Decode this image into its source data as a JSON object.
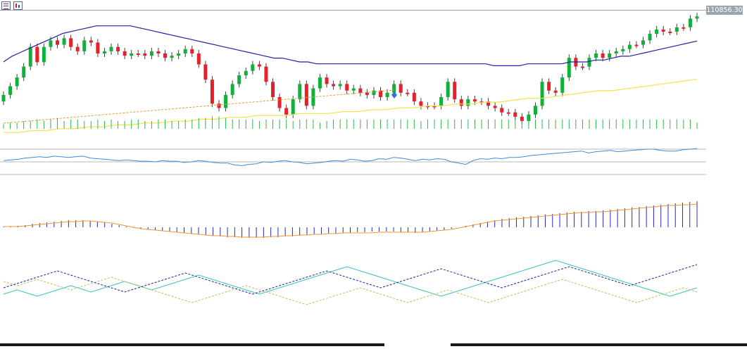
{
  "toolbar": {
    "icons": [
      "list-icon",
      "chart-icon"
    ]
  },
  "price_label": "110856.30",
  "colors": {
    "bull": "#10b03a",
    "bear": "#e8202a",
    "wick": "#404040",
    "ma_slow": "#2020a0",
    "ma_fast": "#f2e34a",
    "trend": "#e0a030",
    "volume": "#32b64a",
    "rsi": "#3b8ddb",
    "level": "#b8b8b8",
    "macd_hist": "#2828c8",
    "macd_signal": "#f0962a",
    "stoch_a": "#40bfc0",
    "stoch_b": "#b8c45a",
    "stoch_c": "#2020a0"
  },
  "chart_data": [
    {
      "type": "candlestick",
      "title": "",
      "last_price": 110856.3,
      "closes": [
        39,
        35,
        31,
        26,
        17,
        24,
        17,
        14,
        16,
        13,
        17,
        19,
        14,
        15,
        20,
        19,
        17,
        19,
        21,
        20,
        20,
        21,
        19,
        20,
        22,
        21,
        20,
        18,
        20,
        25,
        32,
        43,
        45,
        39,
        34,
        30,
        28,
        25,
        26,
        33,
        40,
        45,
        48,
        41,
        34,
        44,
        36,
        31,
        34,
        35,
        34,
        37,
        36,
        38,
        39,
        37,
        40,
        38,
        34,
        38,
        38,
        42,
        44,
        44,
        44,
        40,
        33,
        41,
        44,
        41,
        42,
        42,
        44,
        45,
        47,
        47,
        49,
        51,
        48,
        44,
        33,
        37,
        38,
        31,
        22,
        26,
        26,
        22,
        20,
        22,
        20,
        19,
        18,
        16,
        16,
        14,
        11,
        9,
        10,
        10,
        8,
        8,
        4,
        3
      ],
      "opens": [
        42,
        39,
        35,
        31,
        26,
        17,
        24,
        17,
        14,
        16,
        13,
        17,
        19,
        14,
        15,
        20,
        19,
        17,
        19,
        21,
        20,
        20,
        21,
        19,
        20,
        22,
        21,
        20,
        18,
        20,
        25,
        32,
        43,
        45,
        39,
        34,
        30,
        28,
        25,
        26,
        33,
        40,
        45,
        48,
        41,
        34,
        44,
        36,
        31,
        34,
        35,
        34,
        37,
        36,
        38,
        39,
        37,
        40,
        38,
        34,
        38,
        38,
        42,
        44,
        44,
        44,
        40,
        33,
        41,
        44,
        41,
        42,
        42,
        44,
        45,
        47,
        47,
        49,
        51,
        48,
        44,
        33,
        37,
        38,
        31,
        22,
        26,
        26,
        22,
        20,
        22,
        20,
        19,
        18,
        16,
        16,
        14,
        11,
        9,
        10,
        10,
        8,
        8,
        4
      ],
      "sma_slow": [
        40,
        37,
        35,
        33,
        31,
        29,
        27,
        25,
        24,
        23,
        22,
        21,
        21,
        21,
        21,
        21,
        22,
        23,
        24,
        25,
        26,
        27,
        28,
        29,
        30,
        31,
        32,
        33,
        34,
        35,
        36,
        37,
        38,
        38,
        39,
        40,
        40,
        41,
        41,
        41,
        41,
        41,
        41,
        41,
        41,
        41,
        41,
        41,
        41,
        41,
        41,
        41,
        41,
        41,
        41,
        41,
        41,
        41,
        42,
        42,
        42,
        42,
        41,
        41,
        41,
        41,
        41,
        40,
        40,
        40,
        39,
        39,
        38,
        37,
        37,
        36,
        35,
        34,
        33,
        32,
        31,
        30,
        29
      ],
      "sma_fast": [
        59,
        59,
        58,
        58,
        57,
        57,
        56,
        56,
        55,
        55,
        54,
        54,
        53,
        53,
        52,
        52,
        51,
        51,
        50,
        50,
        50,
        49,
        49,
        49,
        48,
        48,
        47,
        47,
        46,
        46,
        45,
        45,
        44,
        44,
        43,
        43,
        42,
        41,
        41,
        40,
        39,
        38,
        37,
        37,
        36,
        35,
        34,
        33,
        32,
        31
      ],
      "volume": [
        3,
        4,
        4,
        5,
        5,
        6,
        5,
        6,
        7,
        5,
        6,
        6,
        5,
        5,
        6,
        5,
        6,
        5,
        5,
        6,
        6,
        5,
        5,
        6,
        6,
        5,
        5,
        6,
        6,
        7,
        7,
        8,
        8,
        7,
        6,
        6,
        6,
        6,
        5,
        6,
        6,
        6,
        6,
        5,
        6,
        6,
        6,
        4,
        5,
        6,
        6,
        6,
        6,
        6,
        6,
        6,
        6,
        6,
        6,
        6,
        6,
        6,
        5,
        6,
        6,
        6,
        6,
        6,
        6,
        6,
        6,
        6,
        6,
        6,
        6,
        6,
        6,
        6,
        6,
        6,
        6,
        6,
        6,
        6,
        6,
        6,
        6,
        6,
        6,
        6,
        6,
        6,
        6,
        6,
        6,
        6,
        6,
        6,
        6,
        6,
        6,
        6,
        6,
        4
      ]
    },
    {
      "type": "line",
      "title": "",
      "levels": [
        70,
        50,
        30
      ],
      "values": [
        52,
        53,
        54,
        56,
        57,
        58,
        57,
        59,
        58,
        57,
        58,
        59,
        56,
        55,
        54,
        53,
        52,
        53,
        52,
        51,
        51,
        50,
        52,
        51,
        51,
        49,
        50,
        52,
        51,
        49,
        48,
        48,
        45,
        44,
        46,
        47,
        50,
        49,
        51,
        52,
        50,
        49,
        47,
        48,
        49,
        51,
        52,
        51,
        54,
        53,
        51,
        52,
        55,
        54,
        57,
        56,
        54,
        52,
        54,
        53,
        55,
        54,
        50,
        48,
        46,
        52,
        55,
        54,
        56,
        55,
        57,
        57,
        58,
        60,
        61,
        62,
        63,
        64,
        65,
        66,
        67,
        64,
        66,
        67,
        68,
        66,
        67,
        68,
        69,
        70,
        70,
        68,
        67,
        67,
        69,
        70,
        71
      ]
    },
    {
      "type": "bar",
      "title": "",
      "hist": [
        1,
        1,
        2,
        3,
        5,
        6,
        7,
        8,
        9,
        10,
        10,
        10,
        9,
        8,
        7,
        5,
        3,
        1,
        -1,
        -2,
        -3,
        -4,
        -5,
        -6,
        -7,
        -8,
        -9,
        -10,
        -11,
        -12,
        -13,
        -14,
        -14,
        -15,
        -15,
        -15,
        -15,
        -14,
        -14,
        -13,
        -13,
        -12,
        -11,
        -10,
        -10,
        -9,
        -9,
        -8,
        -8,
        -7,
        -7,
        -6,
        -6,
        -6,
        -6,
        -7,
        -7,
        -8,
        -7,
        -6,
        -5,
        -4,
        -2,
        0,
        2,
        4,
        6,
        8,
        10,
        12,
        13,
        14,
        15,
        16,
        17,
        18,
        19,
        20,
        21,
        22,
        22,
        23,
        23,
        24,
        25,
        26,
        27,
        28,
        29,
        30,
        31,
        32,
        33,
        34,
        35,
        36,
        37
      ],
      "signal": [
        1,
        1,
        1,
        2,
        3,
        4,
        5,
        6,
        7,
        8,
        8,
        9,
        9,
        8,
        7,
        6,
        4,
        2,
        0,
        -2,
        -3,
        -4,
        -5,
        -6,
        -7,
        -8,
        -9,
        -10,
        -11,
        -12,
        -12,
        -13,
        -13,
        -14,
        -14,
        -14,
        -14,
        -13,
        -13,
        -12,
        -12,
        -11,
        -11,
        -10,
        -10,
        -9,
        -9,
        -8,
        -8,
        -8,
        -8,
        -8,
        -7,
        -7,
        -7,
        -7,
        -7,
        -7,
        -7,
        -6,
        -5,
        -4,
        -3,
        -1,
        1,
        3,
        5,
        7,
        9,
        10,
        11,
        12,
        13,
        14,
        15,
        16,
        17,
        18,
        19,
        20,
        21,
        21,
        22,
        22,
        23,
        24,
        25,
        26,
        27,
        28,
        29,
        30,
        31,
        31,
        32,
        32,
        33
      ]
    },
    {
      "type": "line",
      "title": "",
      "series": [
        {
          "values": [
            38,
            40,
            42,
            40,
            38,
            36,
            38,
            40,
            42,
            44,
            46,
            44,
            42,
            40,
            42,
            44,
            46,
            48,
            50,
            48,
            46,
            44,
            42,
            44,
            46,
            48,
            50,
            52,
            54,
            56,
            54,
            52,
            50,
            48,
            46,
            44,
            42,
            40,
            38,
            40,
            42,
            44,
            46,
            48,
            50,
            52,
            54,
            56,
            58,
            60,
            62,
            64,
            62,
            60,
            58,
            56,
            54,
            52,
            50,
            48,
            46,
            44,
            42,
            40,
            38,
            36,
            38,
            40,
            42,
            44,
            46,
            48,
            50,
            52,
            54,
            56,
            58,
            60,
            62,
            64,
            66,
            68,
            70,
            68,
            66,
            64,
            62,
            60,
            58,
            56,
            54,
            52,
            50,
            48,
            46,
            44,
            42,
            40,
            38,
            36,
            38,
            40,
            42,
            44
          ]
        },
        {
          "values": [
            50,
            48,
            46,
            48,
            50,
            52,
            50,
            48,
            46,
            44,
            42,
            44,
            46,
            48,
            50,
            52,
            54,
            52,
            50,
            48,
            46,
            44,
            42,
            40,
            38,
            36,
            34,
            32,
            30,
            32,
            34,
            36,
            38,
            40,
            42,
            44,
            46,
            44,
            42,
            40,
            38,
            36,
            34,
            32,
            30,
            28,
            30,
            32,
            34,
            36,
            38,
            40,
            42,
            44,
            42,
            40,
            38,
            36,
            34,
            32,
            30,
            32,
            34,
            36,
            38,
            40,
            42,
            40,
            38,
            36,
            34,
            32,
            30,
            32,
            34,
            36,
            38,
            40,
            42,
            44,
            46,
            48,
            50,
            52,
            50,
            48,
            46,
            44,
            42,
            40,
            38,
            36,
            34,
            32,
            30,
            32,
            34,
            36,
            38,
            40,
            42,
            44,
            42,
            40
          ]
        },
        {
          "values": [
            44,
            46,
            48,
            50,
            52,
            54,
            56,
            58,
            60,
            58,
            56,
            54,
            52,
            50,
            48,
            46,
            44,
            42,
            40,
            42,
            44,
            46,
            48,
            50,
            52,
            54,
            56,
            58,
            56,
            54,
            52,
            50,
            48,
            46,
            44,
            42,
            40,
            38,
            40,
            42,
            44,
            46,
            48,
            50,
            52,
            54,
            56,
            58,
            60,
            58,
            56,
            54,
            52,
            50,
            48,
            46,
            44,
            46,
            48,
            50,
            52,
            54,
            56,
            58,
            60,
            62,
            60,
            58,
            56,
            54,
            52,
            50,
            48,
            46,
            44,
            46,
            48,
            50,
            52,
            54,
            56,
            58,
            60,
            62,
            64,
            62,
            60,
            58,
            56,
            54,
            52,
            50,
            48,
            46,
            48,
            50,
            52,
            54,
            56,
            58,
            60,
            62,
            64,
            66
          ]
        }
      ]
    }
  ]
}
